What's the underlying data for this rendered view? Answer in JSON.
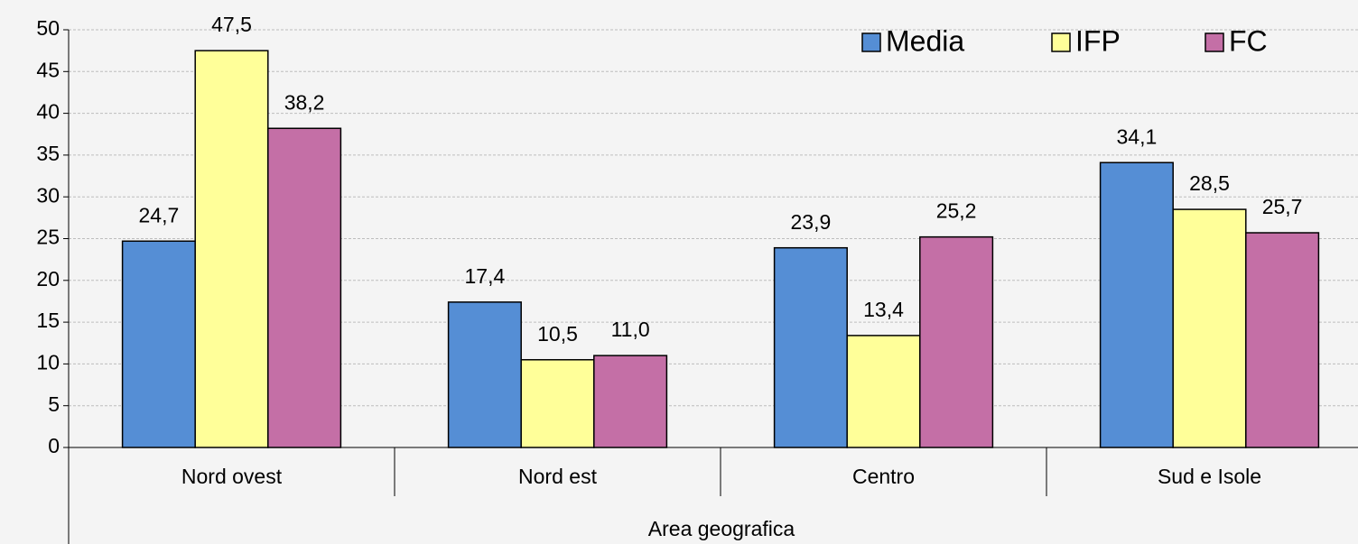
{
  "chart_data": {
    "type": "bar",
    "x_label": "Area geografica",
    "categories": [
      "Nord ovest",
      "Nord est",
      "Centro",
      "Sud e Isole"
    ],
    "series": [
      {
        "name": "Media",
        "color": "#558ed5",
        "values": [
          24.7,
          17.4,
          23.9,
          34.1
        ],
        "value_labels": [
          "24,7",
          "17,4",
          "23,9",
          "34,1"
        ]
      },
      {
        "name": "IFP",
        "color": "#ffff99",
        "values": [
          47.5,
          10.5,
          13.4,
          28.5
        ],
        "value_labels": [
          "47,5",
          "10,5",
          "13,4",
          "28,5"
        ]
      },
      {
        "name": "FC",
        "color": "#c46fa6",
        "values": [
          38.2,
          11.0,
          25.2,
          25.7
        ],
        "value_labels": [
          "38,2",
          "11,0",
          "25,2",
          "25,7"
        ]
      }
    ],
    "ylim": [
      0,
      50
    ],
    "yticks": [
      0,
      5,
      10,
      15,
      20,
      25,
      30,
      35,
      40,
      45,
      50
    ],
    "grid": true,
    "legend": "upper right"
  }
}
